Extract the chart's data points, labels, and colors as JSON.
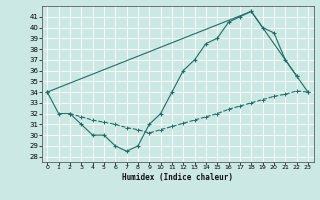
{
  "xlabel": "Humidex (Indice chaleur)",
  "bg_color": "#cce8e5",
  "line_color": "#1e6e65",
  "xlim": [
    -0.5,
    23.5
  ],
  "ylim": [
    27.5,
    42.0
  ],
  "yticks": [
    28,
    29,
    30,
    31,
    32,
    33,
    34,
    35,
    36,
    37,
    38,
    39,
    40,
    41
  ],
  "xticks": [
    0,
    1,
    2,
    3,
    4,
    5,
    6,
    7,
    8,
    9,
    10,
    11,
    12,
    13,
    14,
    15,
    16,
    17,
    18,
    19,
    20,
    21,
    22,
    23
  ],
  "curve1_x": [
    0,
    1,
    2,
    3,
    4,
    5,
    6,
    7,
    8,
    9,
    10,
    11,
    12,
    13,
    14,
    15,
    16,
    17,
    18,
    19,
    20,
    21,
    22
  ],
  "curve1_y": [
    34,
    32,
    32,
    31,
    30,
    30,
    29,
    28.5,
    29,
    31,
    32,
    34,
    36,
    37,
    38.5,
    39,
    40.5,
    41,
    41.5,
    40,
    39.5,
    37,
    35.5
  ],
  "curve2_x": [
    2,
    3,
    4,
    5,
    6,
    7,
    8,
    9,
    10,
    11,
    12,
    13,
    14,
    15,
    16,
    17,
    18,
    19,
    20,
    21,
    22,
    23
  ],
  "curve2_y": [
    32,
    31.7,
    31.4,
    31.2,
    31.0,
    30.7,
    30.5,
    30.2,
    30.5,
    30.8,
    31.1,
    31.4,
    31.7,
    32.0,
    32.4,
    32.7,
    33.0,
    33.3,
    33.6,
    33.8,
    34.1,
    34.0
  ],
  "curve3_x": [
    0,
    18,
    22,
    23
  ],
  "curve3_y": [
    34,
    41.5,
    35.5,
    34
  ]
}
